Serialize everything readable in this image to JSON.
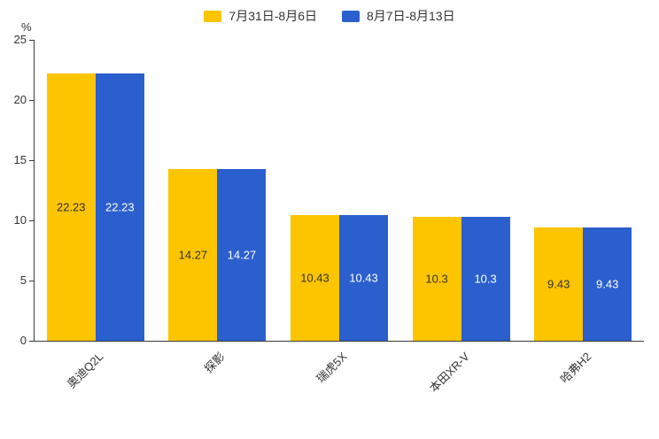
{
  "chart_data": {
    "type": "bar",
    "title": "",
    "categories": [
      "奥迪Q2L",
      "探影",
      "瑞虎5X",
      "本田XR-V",
      "哈弗H2"
    ],
    "series": [
      {
        "name": "7月31日-8月6日",
        "color": "#FDC400",
        "label_color": "#333333",
        "values": [
          22.23,
          14.27,
          10.43,
          10.3,
          9.43
        ]
      },
      {
        "name": "8月7日-8月13日",
        "color": "#2B5FCE",
        "label_color": "#FFFFFF",
        "values": [
          22.23,
          14.27,
          10.43,
          10.3,
          9.43
        ]
      }
    ],
    "xlabel": "",
    "ylabel": "%",
    "yticks": [
      0,
      5,
      10,
      15,
      20,
      25
    ],
    "ylim": [
      0,
      25
    ],
    "grid": false,
    "legend_position": "top",
    "axis_color": "#3a3a3a",
    "background": "#ffffff"
  }
}
